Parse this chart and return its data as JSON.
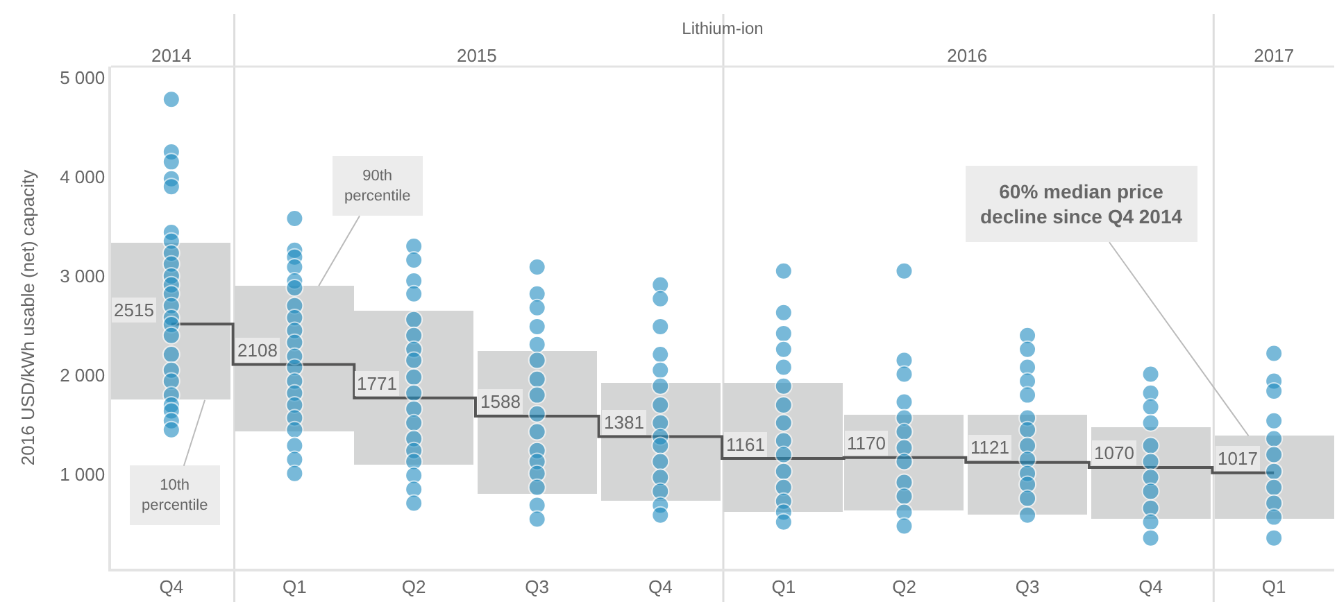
{
  "chart_data": {
    "type": "bar",
    "x2label": "Lithium-ion",
    "ylabel": "2016 USD/kWh usable (net) capacity",
    "x": [
      "2014-11-15",
      "2015-02-15",
      "2015-05-15",
      "2015-08-15",
      "2015-11-15",
      "2016-02-15",
      "2016-05-15",
      "2016-08-15",
      "2016-11-15",
      "2017-02-15"
    ],
    "xlim": [
      "2014-10-01",
      "2017-04-01"
    ],
    "xticks": [
      {
        "value": "2014-11-15",
        "label": "Q4"
      },
      {
        "value": "2015-02-15",
        "label": "Q1"
      },
      {
        "value": "2015-05-15",
        "label": "Q2"
      },
      {
        "value": "2015-08-15",
        "label": "Q3"
      },
      {
        "value": "2015-11-15",
        "label": "Q4"
      },
      {
        "value": "2016-02-15",
        "label": "Q1"
      },
      {
        "value": "2016-05-15",
        "label": "Q2"
      },
      {
        "value": "2016-08-15",
        "label": "Q3"
      },
      {
        "value": "2016-11-15",
        "label": "Q4"
      },
      {
        "value": "2017-02-15",
        "label": "Q1"
      }
    ],
    "x2lim": [
      "2014-10-01",
      "2017-04-01"
    ],
    "x2ticks": [
      {
        "value": "2014-11-15",
        "label": "2014"
      },
      {
        "value": "2015-07-01",
        "label": "2015"
      },
      {
        "value": "2016-07-01",
        "label": "2016"
      },
      {
        "value": "2017-02-15",
        "label": "2017"
      }
    ],
    "ylim": [
      50,
      5110
    ],
    "yticks": [
      {
        "value": 1000,
        "label": "1 000"
      },
      {
        "value": 2000,
        "label": "2 000"
      },
      {
        "value": 3000,
        "label": "3 000"
      },
      {
        "value": 4000,
        "label": "4 000"
      },
      {
        "value": 5000,
        "label": "5 000"
      }
    ],
    "grid": false,
    "series": [
      {
        "color": "#d4d5d5",
        "base": [
          1750,
          1430,
          1100,
          800,
          730,
          620,
          640,
          600,
          560,
          560
        ],
        "values": [
          1580,
          1470,
          1550,
          1450,
          1190,
          1300,
          960,
          1000,
          910,
          830
        ]
      },
      {
        "type": "step",
        "color": "#555555",
        "values": [
          2515,
          2108,
          1771,
          1588,
          1381,
          1161,
          1170,
          1121,
          1070,
          1017
        ],
        "data_labels": true
      },
      {
        "type": "scatter",
        "color": "#1f8cc0",
        "marker": "circle",
        "x": [
          "2014-11-15",
          "2014-11-15",
          "2014-11-15",
          "2014-11-15",
          "2014-11-15",
          "2014-11-15",
          "2014-11-15",
          "2014-11-15",
          "2014-11-15",
          "2014-11-15",
          "2014-11-15",
          "2014-11-15",
          "2014-11-15",
          "2014-11-15",
          "2014-11-15",
          "2014-11-15",
          "2014-11-15",
          "2014-11-15",
          "2014-11-15",
          "2014-11-15",
          "2014-11-15",
          "2014-11-15",
          "2014-11-15",
          "2014-11-15",
          "2015-02-15",
          "2015-02-15",
          "2015-02-15",
          "2015-02-15",
          "2015-02-15",
          "2015-02-15",
          "2015-02-15",
          "2015-02-15",
          "2015-02-15",
          "2015-02-15",
          "2015-02-15",
          "2015-02-15",
          "2015-02-15",
          "2015-02-15",
          "2015-02-15",
          "2015-02-15",
          "2015-02-15",
          "2015-02-15",
          "2015-02-15",
          "2015-02-15",
          "2015-05-15",
          "2015-05-15",
          "2015-05-15",
          "2015-05-15",
          "2015-05-15",
          "2015-05-15",
          "2015-05-15",
          "2015-05-15",
          "2015-05-15",
          "2015-05-15",
          "2015-05-15",
          "2015-05-15",
          "2015-05-15",
          "2015-05-15",
          "2015-05-15",
          "2015-05-15",
          "2015-05-15",
          "2015-05-15",
          "2015-08-15",
          "2015-08-15",
          "2015-08-15",
          "2015-08-15",
          "2015-08-15",
          "2015-08-15",
          "2015-08-15",
          "2015-08-15",
          "2015-08-15",
          "2015-08-15",
          "2015-08-15",
          "2015-08-15",
          "2015-08-15",
          "2015-08-15",
          "2015-08-15",
          "2015-08-15",
          "2015-11-15",
          "2015-11-15",
          "2015-11-15",
          "2015-11-15",
          "2015-11-15",
          "2015-11-15",
          "2015-11-15",
          "2015-11-15",
          "2015-11-15",
          "2015-11-15",
          "2015-11-15",
          "2015-11-15",
          "2015-11-15",
          "2015-11-15",
          "2015-11-15",
          "2016-02-15",
          "2016-02-15",
          "2016-02-15",
          "2016-02-15",
          "2016-02-15",
          "2016-02-15",
          "2016-02-15",
          "2016-02-15",
          "2016-02-15",
          "2016-02-15",
          "2016-02-15",
          "2016-02-15",
          "2016-02-15",
          "2016-02-15",
          "2016-02-15",
          "2016-05-15",
          "2016-05-15",
          "2016-05-15",
          "2016-05-15",
          "2016-05-15",
          "2016-05-15",
          "2016-05-15",
          "2016-05-15",
          "2016-05-15",
          "2016-05-15",
          "2016-05-15",
          "2016-05-15",
          "2016-08-15",
          "2016-08-15",
          "2016-08-15",
          "2016-08-15",
          "2016-08-15",
          "2016-08-15",
          "2016-08-15",
          "2016-08-15",
          "2016-08-15",
          "2016-08-15",
          "2016-08-15",
          "2016-08-15",
          "2016-08-15",
          "2016-11-15",
          "2016-11-15",
          "2016-11-15",
          "2016-11-15",
          "2016-11-15",
          "2016-11-15",
          "2016-11-15",
          "2016-11-15",
          "2016-11-15",
          "2016-11-15",
          "2016-11-15",
          "2017-02-15",
          "2017-02-15",
          "2017-02-15",
          "2017-02-15",
          "2017-02-15",
          "2017-02-15",
          "2017-02-15",
          "2017-02-15",
          "2017-02-15",
          "2017-02-15",
          "2017-02-15"
        ],
        "values": [
          4780,
          4250,
          4150,
          3980,
          3900,
          3440,
          3350,
          3230,
          3120,
          3000,
          2910,
          2820,
          2700,
          2580,
          2510,
          2400,
          2210,
          2050,
          1940,
          1800,
          1700,
          1640,
          1540,
          1450,
          3580,
          3260,
          3190,
          3090,
          2950,
          2880,
          2700,
          2580,
          2450,
          2330,
          2190,
          2080,
          1940,
          1820,
          1700,
          1570,
          1450,
          1290,
          1150,
          1010,
          3300,
          3160,
          2950,
          2820,
          2560,
          2400,
          2260,
          2150,
          1980,
          1820,
          1660,
          1520,
          1360,
          1240,
          1130,
          990,
          850,
          710,
          3090,
          2820,
          2680,
          2490,
          2310,
          2150,
          1960,
          1800,
          1610,
          1430,
          1240,
          1130,
          1010,
          870,
          690,
          550,
          2910,
          2770,
          2490,
          2210,
          2050,
          1890,
          1700,
          1520,
          1380,
          1290,
          1130,
          970,
          830,
          690,
          590,
          3050,
          2630,
          2420,
          2260,
          2080,
          1890,
          1700,
          1520,
          1340,
          1200,
          1030,
          870,
          730,
          620,
          520,
          3050,
          2150,
          2010,
          1730,
          1570,
          1430,
          1270,
          1130,
          920,
          780,
          620,
          480,
          2400,
          2260,
          2080,
          1940,
          1800,
          1570,
          1450,
          1290,
          1150,
          1010,
          900,
          760,
          590,
          2010,
          1820,
          1680,
          1520,
          1290,
          1130,
          970,
          830,
          660,
          520,
          360,
          2220,
          1940,
          1840,
          1540,
          1360,
          1200,
          1030,
          870,
          710,
          570,
          360
        ]
      }
    ],
    "ref_lines": [
      {
        "axis": "x",
        "value": "2015-01-01",
        "color": "#dddddd"
      },
      {
        "axis": "x",
        "value": "2016-01-01",
        "color": "#dddddd"
      },
      {
        "axis": "x",
        "value": "2017-01-01",
        "color": "#dddddd"
      }
    ],
    "annotations": [
      {
        "text": "90th percentile",
        "x": "2015-03-05",
        "y": 2900
      },
      {
        "text": "10th percentile",
        "x": "2014-12-10",
        "y": 1750
      },
      {
        "text": "60% median price decline since Q4 2014",
        "x": "2017-01-27",
        "y": 1390
      }
    ]
  }
}
